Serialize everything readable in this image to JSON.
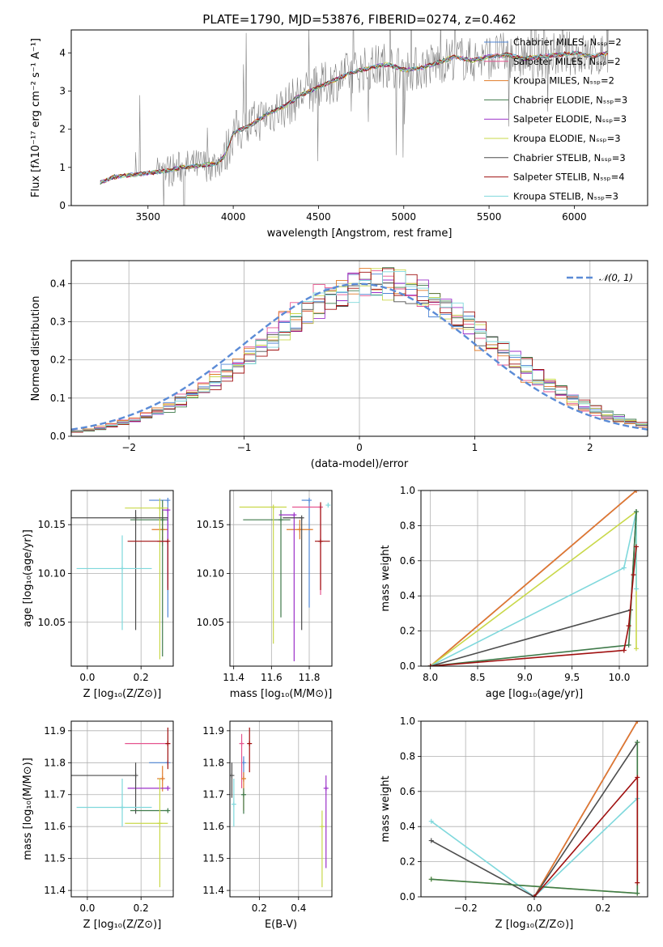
{
  "colors": {
    "chabrier_miles": "#4f86d6",
    "salpeter_miles": "#e6558f",
    "kroupa_miles": "#e07b2a",
    "chabrier_elodie": "#3f7a4a",
    "salpeter_elodie": "#9b30c9",
    "kroupa_elodie": "#c9d84a",
    "chabrier_stelib": "#4d4d4d",
    "salpeter_stelib": "#a01010",
    "kroupa_stelib": "#7fd8dc",
    "gaussian": "#5b8bd6",
    "data": "#808080"
  },
  "chart_data": [
    {
      "id": "spectrum",
      "type": "line",
      "title": "PLATE=1790, MJD=53876, FIBERID=0274, z=0.462",
      "xlabel": "wavelength [Angstrom, rest frame]",
      "ylabel": "Flux [fλ10⁻¹⁷ erg cm⁻² s⁻¹ A⁻¹]",
      "xlim": [
        3050,
        6430
      ],
      "ylim": [
        0,
        4.6
      ],
      "xticks": [
        "3500",
        "4000",
        "4500",
        "5000",
        "5500",
        "6000"
      ],
      "yticks": [
        "0",
        "1",
        "2",
        "3",
        "4"
      ],
      "grid": false,
      "legend_position": "top-right",
      "legend": [
        {
          "label": "Chabrier MILES, Nₛₛₚ=2",
          "color": "#4f86d6"
        },
        {
          "label": "Salpeter MILES, Nₛₛₚ=2",
          "color": "#e6558f"
        },
        {
          "label": "Kroupa MILES, Nₛₛₚ=2",
          "color": "#e07b2a"
        },
        {
          "label": "Chabrier ELODIE, Nₛₛₚ=3",
          "color": "#3f7a4a"
        },
        {
          "label": "Salpeter ELODIE, Nₛₛₚ=3",
          "color": "#9b30c9"
        },
        {
          "label": "Kroupa ELODIE, Nₛₛₚ=3",
          "color": "#c9d84a"
        },
        {
          "label": "Chabrier STELIB, Nₛₛₚ=3",
          "color": "#4d4d4d"
        },
        {
          "label": "Salpeter STELIB, Nₛₛₚ=4",
          "color": "#a01010"
        },
        {
          "label": "Kroupa STELIB, Nₛₛₚ=3",
          "color": "#7fd8dc"
        }
      ],
      "model_continuum": {
        "x": [
          3220,
          3300,
          3400,
          3500,
          3600,
          3700,
          3800,
          3900,
          3950,
          4000,
          4100,
          4200,
          4300,
          4400,
          4500,
          4600,
          4700,
          4800,
          4900,
          5000,
          5100,
          5200,
          5300,
          5400,
          5500,
          5600,
          5700,
          5800,
          5900,
          6000,
          6100,
          6200
        ],
        "y": [
          0.6,
          0.75,
          0.8,
          0.85,
          0.9,
          1.0,
          1.05,
          1.1,
          1.3,
          1.9,
          2.1,
          2.4,
          2.6,
          2.9,
          3.1,
          3.3,
          3.5,
          3.6,
          3.7,
          3.55,
          3.6,
          3.75,
          3.9,
          3.8,
          3.9,
          3.95,
          3.85,
          3.9,
          3.95,
          4.0,
          3.9,
          4.0
        ]
      }
    },
    {
      "id": "residuals",
      "type": "line",
      "xlabel": "(data-model)/error",
      "ylabel": "Normed distribution",
      "xlim": [
        -2.5,
        2.5
      ],
      "ylim": [
        0,
        0.46
      ],
      "xticks": [
        "−2",
        "−1",
        "0",
        "1",
        "2"
      ],
      "yticks": [
        "0.0",
        "0.1",
        "0.2",
        "0.3",
        "0.4"
      ],
      "grid": true,
      "legend_position": "top-right",
      "legend": [
        {
          "label": "𝒩(0, 1)",
          "color": "#5b8bd6"
        }
      ],
      "series": [
        {
          "name": "𝒩(0, 1)",
          "mean": 0,
          "sigma": 1
        }
      ]
    },
    {
      "id": "age_vs_Z",
      "type": "scatter",
      "xlabel": "Z [log₁₀(Z/Z⊙)]",
      "ylabel": "age  [log₁₀(age/yr)]",
      "xlim": [
        -0.06,
        0.32
      ],
      "ylim": [
        10.005,
        10.185
      ],
      "xticks": [
        "0.0",
        "0.2"
      ],
      "yticks": [
        "10.05",
        "10.10",
        "10.15"
      ],
      "grid": true,
      "points": [
        {
          "color": "#4f86d6",
          "x": 0.3,
          "y": 10.175,
          "xerr": [
            0.07,
            0.0
          ],
          "yerr": [
            0.12,
            0.0
          ]
        },
        {
          "color": "#e6558f",
          "x": 0.28,
          "y": 10.133,
          "xerr": [
            0.02,
            0.02
          ],
          "yerr": [
            0.005,
            0.005
          ]
        },
        {
          "color": "#e07b2a",
          "x": 0.28,
          "y": 10.145,
          "xerr": [
            0.04,
            0.02
          ],
          "yerr": [
            0.01,
            0.02
          ]
        },
        {
          "color": "#3f7a4a",
          "x": 0.28,
          "y": 10.155,
          "xerr": [
            0.12,
            0.02
          ],
          "yerr": [
            0.14,
            0.02
          ]
        },
        {
          "color": "#9b30c9",
          "x": 0.3,
          "y": 10.165,
          "xerr": [
            0.02,
            0.0
          ],
          "yerr": [
            0.08,
            0.0
          ]
        },
        {
          "color": "#c9d84a",
          "x": 0.27,
          "y": 10.167,
          "xerr": [
            0.13,
            0.03
          ],
          "yerr": [
            0.155,
            0.01
          ]
        },
        {
          "color": "#4d4d4d",
          "x": 0.18,
          "y": 10.157,
          "xerr": [
            0.24,
            0.12
          ],
          "yerr": [
            0.115,
            0.008
          ]
        },
        {
          "color": "#a01010",
          "x": 0.3,
          "y": 10.133,
          "xerr": [
            0.15,
            0.0
          ],
          "yerr": [
            0.05,
            0.0
          ]
        },
        {
          "color": "#7fd8dc",
          "x": 0.13,
          "y": 10.105,
          "xerr": [
            0.17,
            0.11
          ],
          "yerr": [
            0.063,
            0.034
          ]
        }
      ]
    },
    {
      "id": "age_vs_mass",
      "type": "scatter",
      "xlabel": "mass [log₁₀(M/M⊙)]",
      "ylabel": "",
      "xlim": [
        11.38,
        11.92
      ],
      "ylim": [
        10.005,
        10.185
      ],
      "xticks": [
        "11.4",
        "11.6",
        "11.8"
      ],
      "yticks": [
        "10.05",
        "10.10",
        "10.15"
      ],
      "grid": true,
      "points": [
        {
          "color": "#4f86d6",
          "x": 11.8,
          "y": 10.175,
          "xerr": [
            0.04,
            0.0
          ],
          "yerr": [
            0.11,
            0.0
          ]
        },
        {
          "color": "#e6558f",
          "x": 11.86,
          "y": 10.168,
          "xerr": [
            0.15,
            0.0
          ],
          "yerr": [
            0.09,
            0.0
          ]
        },
        {
          "color": "#e07b2a",
          "x": 11.75,
          "y": 10.145,
          "xerr": [
            0.07,
            0.07
          ],
          "yerr": [
            0.01,
            0.01
          ]
        },
        {
          "color": "#3f7a4a",
          "x": 11.65,
          "y": 10.155,
          "xerr": [
            0.2,
            0.05
          ],
          "yerr": [
            0.1,
            0.01
          ]
        },
        {
          "color": "#9b30c9",
          "x": 11.72,
          "y": 10.16,
          "xerr": [
            0.08,
            0.0
          ],
          "yerr": [
            0.15,
            0.0
          ]
        },
        {
          "color": "#c9d84a",
          "x": 11.61,
          "y": 10.168,
          "xerr": [
            0.18,
            0.07
          ],
          "yerr": [
            0.14,
            0.0
          ]
        },
        {
          "color": "#4d4d4d",
          "x": 11.76,
          "y": 10.157,
          "xerr": [
            0.1,
            0.0
          ],
          "yerr": [
            0.115,
            0.0
          ]
        },
        {
          "color": "#a01010",
          "x": 11.86,
          "y": 10.133,
          "xerr": [
            0.03,
            0.05
          ],
          "yerr": [
            0.05,
            0.04
          ]
        },
        {
          "color": "#7fd8dc",
          "x": 11.9,
          "y": 10.17,
          "xerr": [
            0.0,
            0.0
          ],
          "yerr": [
            0.0,
            0.0
          ]
        }
      ]
    },
    {
      "id": "weight_vs_age",
      "type": "line",
      "xlabel": "age  [log₁₀(age/yr)]",
      "ylabel": "mass weight",
      "xlim": [
        7.9,
        10.3
      ],
      "ylim": [
        0,
        1.0
      ],
      "xticks": [
        "8.0",
        "8.5",
        "9.0",
        "9.5",
        "10.0"
      ],
      "yticks": [
        "0.0",
        "0.2",
        "0.4",
        "0.6",
        "0.8",
        "1.0"
      ],
      "grid": true,
      "series": [
        {
          "color": "#4f86d6",
          "x": [
            8.0,
            10.18
          ],
          "y": [
            0.0,
            1.0
          ]
        },
        {
          "color": "#e6558f",
          "x": [
            8.0,
            10.18
          ],
          "y": [
            0.0,
            1.0
          ]
        },
        {
          "color": "#e07b2a",
          "x": [
            8.0,
            10.18
          ],
          "y": [
            0.0,
            1.0
          ]
        },
        {
          "color": "#c9d84a",
          "x": [
            8.0,
            10.18,
            10.18
          ],
          "y": [
            0.0,
            0.88,
            0.1
          ]
        },
        {
          "color": "#7fd8dc",
          "x": [
            8.0,
            10.05,
            10.18,
            10.18
          ],
          "y": [
            0.0,
            0.56,
            0.88,
            0.44
          ]
        },
        {
          "color": "#4d4d4d",
          "x": [
            8.0,
            10.12,
            10.18
          ],
          "y": [
            0.0,
            0.32,
            0.88
          ]
        },
        {
          "color": "#3f7a4a",
          "x": [
            8.0,
            10.1,
            10.18
          ],
          "y": [
            0.0,
            0.12,
            0.88
          ]
        },
        {
          "color": "#a01010",
          "x": [
            8.0,
            10.05,
            10.1,
            10.15,
            10.18
          ],
          "y": [
            0.0,
            0.09,
            0.23,
            0.52,
            0.68
          ]
        }
      ]
    },
    {
      "id": "mass_vs_Z",
      "type": "scatter",
      "xlabel": "Z [log₁₀(Z/Z⊙)]",
      "ylabel": "mass [log₁₀(M/M⊙)]",
      "xlim": [
        -0.06,
        0.32
      ],
      "ylim": [
        11.38,
        11.93
      ],
      "xticks": [
        "0.0",
        "0.2"
      ],
      "yticks": [
        "11.4",
        "11.5",
        "11.6",
        "11.7",
        "11.8",
        "11.9"
      ],
      "grid": true,
      "points": [
        {
          "color": "#4f86d6",
          "x": 0.3,
          "y": 11.8,
          "xerr": [
            0.07,
            0.0
          ],
          "yerr": [
            0.0,
            0.0
          ]
        },
        {
          "color": "#e6558f",
          "x": 0.3,
          "y": 11.86,
          "xerr": [
            0.16,
            0.0
          ],
          "yerr": [
            0.0,
            0.0
          ]
        },
        {
          "color": "#e07b2a",
          "x": 0.28,
          "y": 11.75,
          "xerr": [
            0.02,
            0.0
          ],
          "yerr": [
            0.04,
            0.04
          ]
        },
        {
          "color": "#3f7a4a",
          "x": 0.3,
          "y": 11.65,
          "xerr": [
            0.14,
            0.0
          ],
          "yerr": [
            0.0,
            0.0
          ]
        },
        {
          "color": "#9b30c9",
          "x": 0.3,
          "y": 11.72,
          "xerr": [
            0.15,
            0.0
          ],
          "yerr": [
            0.0,
            0.0
          ]
        },
        {
          "color": "#c9d84a",
          "x": 0.27,
          "y": 11.61,
          "xerr": [
            0.13,
            0.03
          ],
          "yerr": [
            0.2,
            0.14
          ]
        },
        {
          "color": "#4d4d4d",
          "x": 0.18,
          "y": 11.76,
          "xerr": [
            0.24,
            0.0
          ],
          "yerr": [
            0.12,
            0.04
          ]
        },
        {
          "color": "#a01010",
          "x": 0.3,
          "y": 11.86,
          "xerr": [
            0.0,
            0.0
          ],
          "yerr": [
            0.08,
            0.05
          ]
        },
        {
          "color": "#7fd8dc",
          "x": 0.13,
          "y": 11.66,
          "xerr": [
            0.17,
            0.11
          ],
          "yerr": [
            0.06,
            0.09
          ]
        }
      ]
    },
    {
      "id": "mass_vs_ebv",
      "type": "scatter",
      "xlabel": "E(B-V)",
      "ylabel": "",
      "xlim": [
        0.05,
        0.57
      ],
      "ylim": [
        11.38,
        11.93
      ],
      "xticks": [
        "0.2",
        "0.4"
      ],
      "yticks": [
        "11.4",
        "11.5",
        "11.6",
        "11.7",
        "11.8",
        "11.9"
      ],
      "grid": true,
      "points": [
        {
          "color": "#4f86d6",
          "x": 0.12,
          "y": 11.8,
          "xerr": [
            0,
            0
          ],
          "yerr": [
            0.06,
            0.02
          ]
        },
        {
          "color": "#e6558f",
          "x": 0.11,
          "y": 11.86,
          "xerr": [
            0,
            0
          ],
          "yerr": [
            0.14,
            0.03
          ]
        },
        {
          "color": "#e07b2a",
          "x": 0.12,
          "y": 11.75,
          "xerr": [
            0,
            0
          ],
          "yerr": [
            0.1,
            0.02
          ]
        },
        {
          "color": "#3f7a4a",
          "x": 0.12,
          "y": 11.7,
          "xerr": [
            0,
            0
          ],
          "yerr": [
            0.06,
            0.02
          ]
        },
        {
          "color": "#9b30c9",
          "x": 0.54,
          "y": 11.72,
          "xerr": [
            0,
            0
          ],
          "yerr": [
            0.25,
            0.04
          ]
        },
        {
          "color": "#c9d84a",
          "x": 0.52,
          "y": 11.6,
          "xerr": [
            0,
            0
          ],
          "yerr": [
            0.19,
            0.05
          ]
        },
        {
          "color": "#4d4d4d",
          "x": 0.06,
          "y": 11.76,
          "xerr": [
            0,
            0
          ],
          "yerr": [
            0.07,
            0.04
          ]
        },
        {
          "color": "#a01010",
          "x": 0.15,
          "y": 11.86,
          "xerr": [
            0,
            0
          ],
          "yerr": [
            0.09,
            0.05
          ]
        },
        {
          "color": "#7fd8dc",
          "x": 0.07,
          "y": 11.67,
          "xerr": [
            0,
            0
          ],
          "yerr": [
            0.07,
            0.08
          ]
        }
      ]
    },
    {
      "id": "weight_vs_Z",
      "type": "line",
      "xlabel": "Z [log₁₀(Z/Z⊙)]",
      "ylabel": "mass weight",
      "xlim": [
        -0.33,
        0.33
      ],
      "ylim": [
        0,
        1.0
      ],
      "xticks": [
        "−0.2",
        "0.0",
        "0.2"
      ],
      "yticks": [
        "0.0",
        "0.2",
        "0.4",
        "0.6",
        "0.8",
        "1.0"
      ],
      "grid": true,
      "series": [
        {
          "color": "#4f86d6",
          "x": [
            0.0,
            0.3
          ],
          "y": [
            0.0,
            1.0
          ]
        },
        {
          "color": "#e6558f",
          "x": [
            0.0,
            0.3
          ],
          "y": [
            0.0,
            1.0
          ]
        },
        {
          "color": "#e07b2a",
          "x": [
            0.0,
            0.3
          ],
          "y": [
            0.0,
            1.0
          ]
        },
        {
          "color": "#c9d84a",
          "x": [
            -0.3,
            0.3,
            0.3
          ],
          "y": [
            0.1,
            0.02,
            0.88
          ]
        },
        {
          "color": "#7fd8dc",
          "x": [
            -0.3,
            0.0,
            0.3
          ],
          "y": [
            0.43,
            0.0,
            0.56
          ]
        },
        {
          "color": "#4d4d4d",
          "x": [
            -0.3,
            0.0,
            0.3
          ],
          "y": [
            0.32,
            0.0,
            0.88
          ]
        },
        {
          "color": "#3f7a4a",
          "x": [
            -0.3,
            0.3,
            0.3
          ],
          "y": [
            0.1,
            0.02,
            0.88
          ]
        },
        {
          "color": "#a01010",
          "x": [
            0.0,
            0.3,
            0.3
          ],
          "y": [
            0.0,
            0.68,
            0.08
          ]
        }
      ]
    }
  ]
}
